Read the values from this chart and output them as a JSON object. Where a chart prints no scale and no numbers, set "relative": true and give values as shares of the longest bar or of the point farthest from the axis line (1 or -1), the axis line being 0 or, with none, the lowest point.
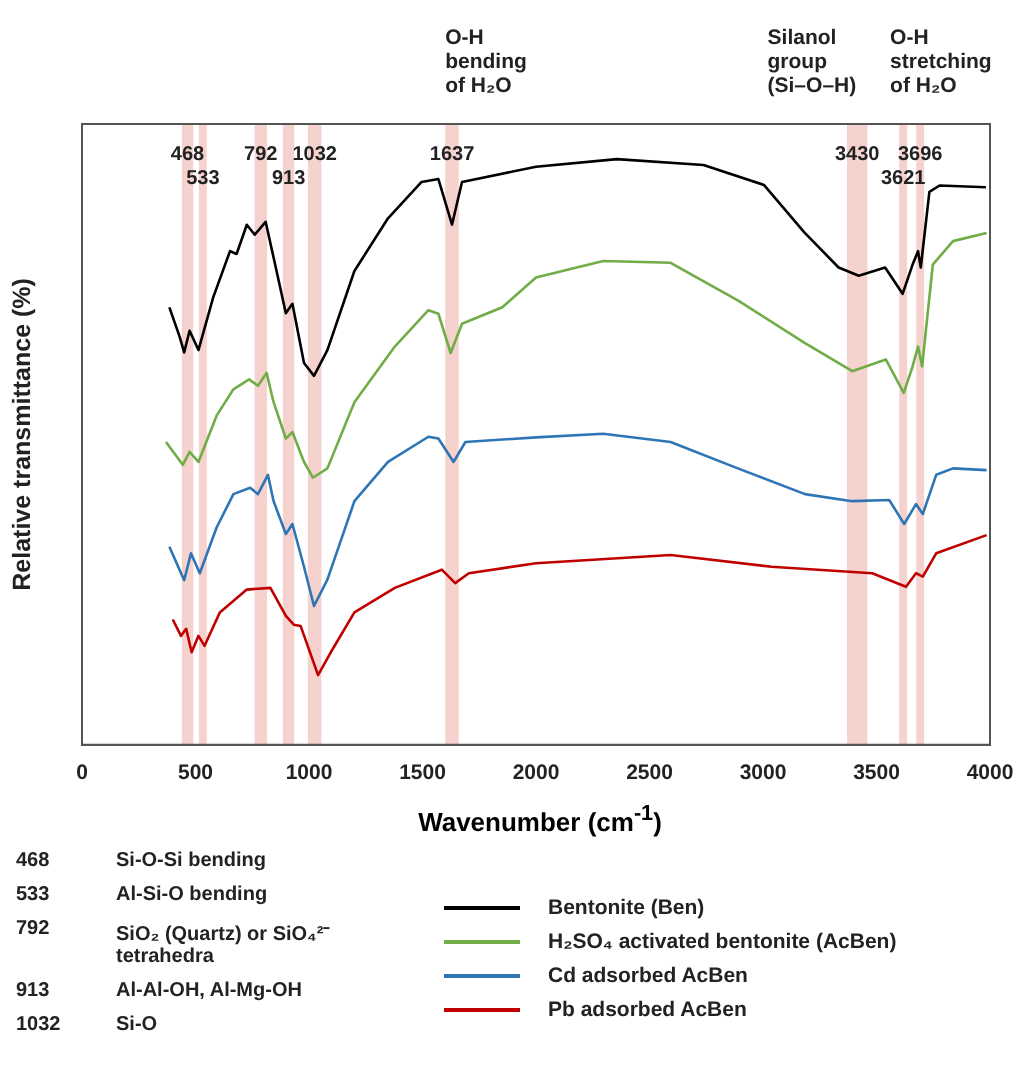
{
  "chart_data": {
    "type": "line",
    "relative": true,
    "xlabel": "Wavenumber (cm$^{-1}$)",
    "ylabel": "Relative transmittance (%)",
    "xlim": [
      0,
      4000
    ],
    "xticks": [
      0,
      500,
      1000,
      1500,
      2000,
      2500,
      3000,
      3500,
      4000
    ],
    "grid": false,
    "legend": "bottom right",
    "series": [
      {
        "name": "Bentonite (Ben)",
        "color": "#000000",
        "x": [
          385,
          430,
          450,
          474,
          513,
          578,
          652,
          681,
          726,
          761,
          809,
          844,
          898,
          927,
          978,
          1022,
          1081,
          1200,
          1348,
          1496,
          1570,
          1630,
          1674,
          2000,
          2356,
          2738,
          3004,
          3182,
          3333,
          3422,
          3538,
          3615,
          3659,
          3683,
          3695,
          3733,
          3778,
          3982
        ],
        "values": [
          0.747,
          0.697,
          0.67,
          0.707,
          0.674,
          0.764,
          0.843,
          0.838,
          0.888,
          0.871,
          0.893,
          0.832,
          0.737,
          0.753,
          0.652,
          0.63,
          0.674,
          0.809,
          0.899,
          0.961,
          0.966,
          0.888,
          0.961,
          0.987,
          1,
          0.99,
          0.956,
          0.875,
          0.815,
          0.801,
          0.815,
          0.77,
          0.82,
          0.843,
          0.815,
          0.944,
          0.955,
          0.952
        ]
      },
      {
        "name": "H₂SO₄ activated bentonite (AcBen)",
        "color": "#70ad47",
        "x": [
          370,
          444,
          474,
          513,
          593,
          667,
          736,
          775,
          813,
          844,
          898,
          927,
          978,
          1017,
          1081,
          1200,
          1378,
          1526,
          1570,
          1624,
          1674,
          1852,
          2000,
          2296,
          2593,
          2889,
          3185,
          3393,
          3541,
          3620,
          3659,
          3683,
          3701,
          3748,
          3837,
          3985
        ],
        "values": [
          0.517,
          0.478,
          0.5,
          0.483,
          0.562,
          0.607,
          0.624,
          0.613,
          0.635,
          0.585,
          0.523,
          0.534,
          0.483,
          0.456,
          0.472,
          0.585,
          0.68,
          0.742,
          0.736,
          0.669,
          0.719,
          0.747,
          0.798,
          0.826,
          0.823,
          0.759,
          0.686,
          0.638,
          0.658,
          0.601,
          0.646,
          0.68,
          0.646,
          0.82,
          0.86,
          0.874
        ]
      },
      {
        "name": "Cd adsorbed AcBen",
        "color": "#2e75b6",
        "x": [
          385,
          450,
          480,
          519,
          593,
          667,
          741,
          775,
          819,
          844,
          898,
          927,
          978,
          1022,
          1081,
          1200,
          1348,
          1526,
          1570,
          1637,
          1689,
          2000,
          2296,
          2593,
          2889,
          3185,
          3393,
          3556,
          3622,
          3674,
          3704,
          3763,
          3837,
          3985
        ],
        "values": [
          0.338,
          0.281,
          0.327,
          0.293,
          0.371,
          0.428,
          0.439,
          0.428,
          0.461,
          0.416,
          0.36,
          0.377,
          0.304,
          0.237,
          0.282,
          0.416,
          0.483,
          0.526,
          0.523,
          0.483,
          0.517,
          0.525,
          0.531,
          0.517,
          0.472,
          0.428,
          0.416,
          0.418,
          0.377,
          0.411,
          0.394,
          0.461,
          0.472,
          0.469
        ]
      },
      {
        "name": "Pb adsorbed AcBen",
        "color": "#c00000",
        "x": [
          400,
          436,
          459,
          483,
          513,
          540,
          607,
          726,
          830,
          898,
          933,
          963,
          1040,
          1096,
          1200,
          1378,
          1585,
          1644,
          1704,
          2000,
          2593,
          3037,
          3481,
          3630,
          3674,
          3704,
          3763,
          3985
        ],
        "values": [
          0.214,
          0.186,
          0.198,
          0.158,
          0.186,
          0.169,
          0.226,
          0.265,
          0.268,
          0.22,
          0.205,
          0.203,
          0.119,
          0.158,
          0.226,
          0.268,
          0.299,
          0.276,
          0.293,
          0.31,
          0.324,
          0.304,
          0.293,
          0.27,
          0.293,
          0.287,
          0.327,
          0.358
        ]
      }
    ],
    "bands": [
      {
        "axis": "x",
        "from": 440,
        "to": 490,
        "label": "468",
        "color": "#f4c7c3"
      },
      {
        "axis": "x",
        "from": 515,
        "to": 550,
        "label": "533",
        "color": "#f4c7c3"
      },
      {
        "axis": "x",
        "from": 760,
        "to": 815,
        "label": "792",
        "color": "#f4c7c3"
      },
      {
        "axis": "x",
        "from": 885,
        "to": 935,
        "label": "913",
        "color": "#f4c7c3"
      },
      {
        "axis": "x",
        "from": 995,
        "to": 1055,
        "label": "1032",
        "color": "#f4c7c3"
      },
      {
        "axis": "x",
        "from": 1600,
        "to": 1660,
        "label": "1637",
        "color": "#f4c7c3"
      },
      {
        "axis": "x",
        "from": 3370,
        "to": 3460,
        "label": "3430",
        "color": "#f4c7c3"
      },
      {
        "axis": "x",
        "from": 3600,
        "to": 3635,
        "label": "3621",
        "color": "#f4c7c3"
      },
      {
        "axis": "x",
        "from": 3675,
        "to": 3710,
        "label": "3696",
        "color": "#f4c7c3"
      }
    ],
    "annotations": [
      "O-H bending of H₂O",
      "Silanol group (Si–O–H)",
      "O-H stretching of H₂O",
      "468 Si-O-Si bending",
      "533 Al-Si-O bending",
      "792 SiO₂ (Quartz) or SiO₄²⁻ tetrahedra",
      "913 Al-Al-OH, Al-Mg-OH",
      "1032 Si-O"
    ]
  }
}
